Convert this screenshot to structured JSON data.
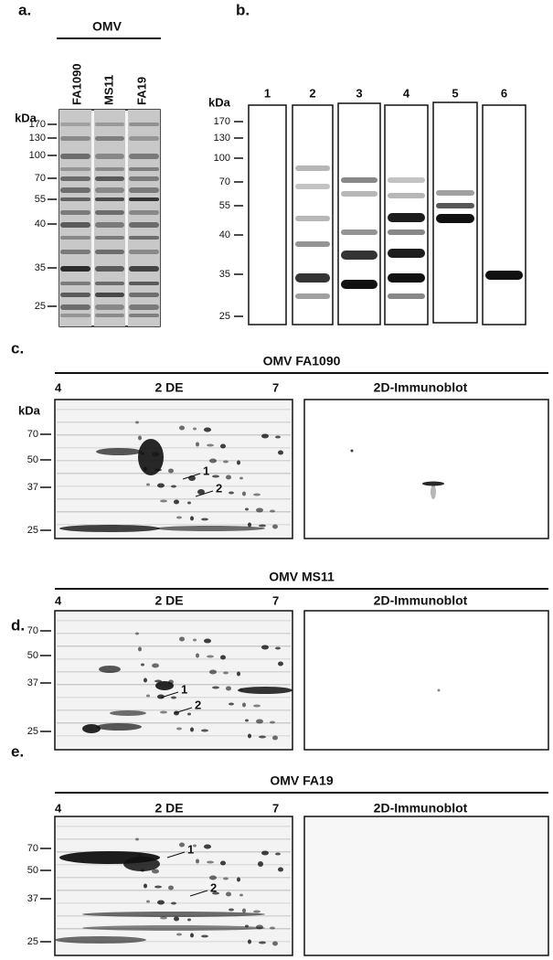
{
  "panel_a": {
    "label": "a.",
    "group": "OMV",
    "lanes": [
      "FA1090",
      "MS11",
      "FA19"
    ],
    "unit": "kDa",
    "markers": [
      170,
      130,
      100,
      70,
      55,
      40,
      35,
      25
    ]
  },
  "panel_b": {
    "label": "b.",
    "unit": "kDa",
    "lanes": [
      1,
      2,
      3,
      4,
      5,
      6
    ],
    "markers": [
      170,
      130,
      100,
      70,
      55,
      40,
      35,
      25
    ]
  },
  "panel_c": {
    "label": "c.",
    "title": "OMV FA1090",
    "left_title": "2 DE",
    "right_title": "2D-Immunoblot",
    "ph_start": 4,
    "ph_end": 7,
    "unit": "kDa",
    "markers": [
      70,
      50,
      37,
      25
    ],
    "spots": [
      1,
      2
    ]
  },
  "panel_d": {
    "label": "d.",
    "title": "OMV MS11",
    "left_title": "2 DE",
    "right_title": "2D-Immunoblot",
    "ph_start": 4,
    "ph_end": 7,
    "markers": [
      70,
      50,
      37,
      25
    ],
    "spots": [
      1,
      2
    ]
  },
  "panel_e": {
    "label": "e.",
    "title": "OMV FA19",
    "left_title": "2 DE",
    "right_title": "2D-Immunoblot",
    "ph_start": 4,
    "ph_end": 7,
    "markers": [
      70,
      50,
      37,
      25
    ],
    "spots": [
      1,
      2
    ]
  }
}
